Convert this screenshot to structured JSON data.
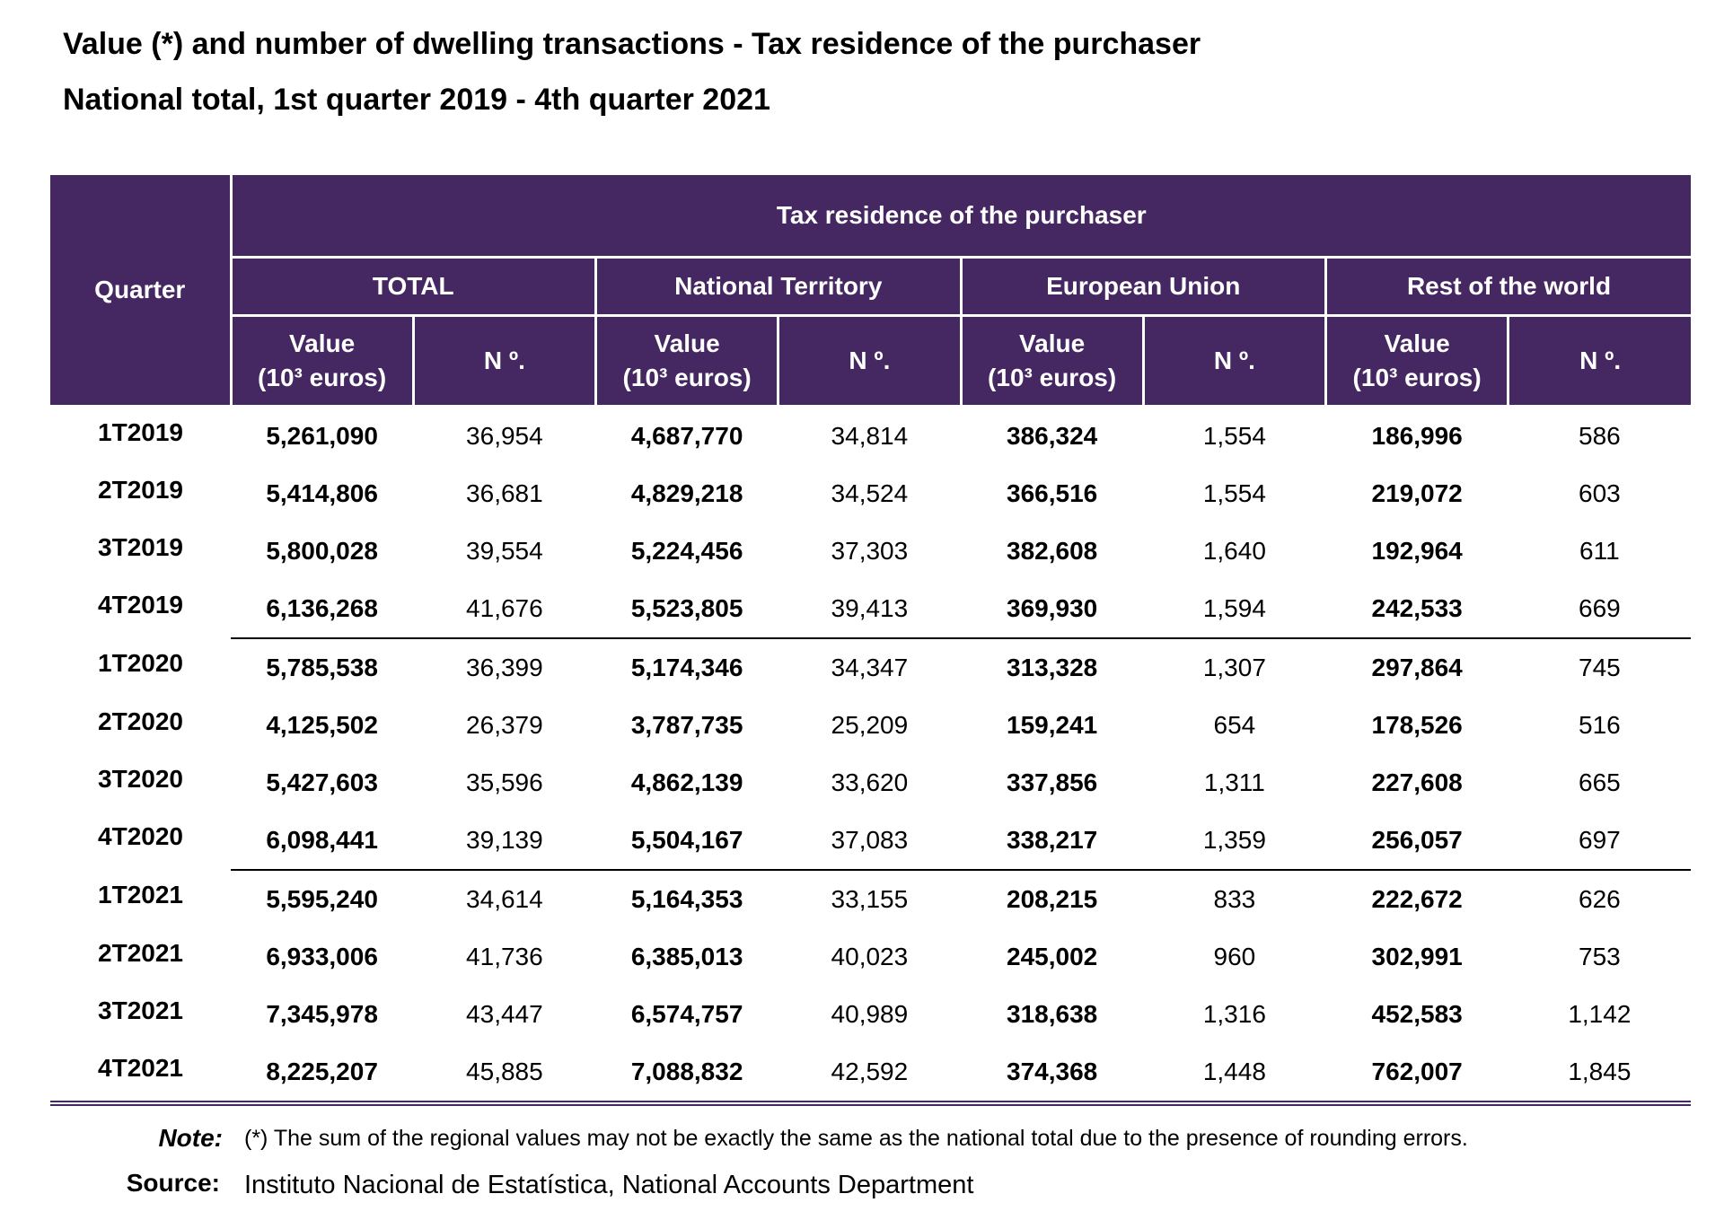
{
  "title": "Value (*) and number of dwelling transactions - Tax residence of the purchaser",
  "subtitle": "National total, 1st quarter 2019 - 4th quarter 2021",
  "table": {
    "quarter_header": "Quarter",
    "group_header": "Tax residence of the purchaser",
    "groups": [
      "TOTAL",
      "National Territory",
      "European Union",
      "Rest of the world"
    ],
    "value_header": "Value",
    "value_unit": "(10³ euros)",
    "count_header": "N º.",
    "rows": [
      [
        "1T2019",
        "5,261,090",
        "36,954",
        "4,687,770",
        "34,814",
        "386,324",
        "1,554",
        "186,996",
        "586"
      ],
      [
        "2T2019",
        "5,414,806",
        "36,681",
        "4,829,218",
        "34,524",
        "366,516",
        "1,554",
        "219,072",
        "603"
      ],
      [
        "3T2019",
        "5,800,028",
        "39,554",
        "5,224,456",
        "37,303",
        "382,608",
        "1,640",
        "192,964",
        "611"
      ],
      [
        "4T2019",
        "6,136,268",
        "41,676",
        "5,523,805",
        "39,413",
        "369,930",
        "1,594",
        "242,533",
        "669"
      ],
      [
        "1T2020",
        "5,785,538",
        "36,399",
        "5,174,346",
        "34,347",
        "313,328",
        "1,307",
        "297,864",
        "745"
      ],
      [
        "2T2020",
        "4,125,502",
        "26,379",
        "3,787,735",
        "25,209",
        "159,241",
        "654",
        "178,526",
        "516"
      ],
      [
        "3T2020",
        "5,427,603",
        "35,596",
        "4,862,139",
        "33,620",
        "337,856",
        "1,311",
        "227,608",
        "665"
      ],
      [
        "4T2020",
        "6,098,441",
        "39,139",
        "5,504,167",
        "37,083",
        "338,217",
        "1,359",
        "256,057",
        "697"
      ],
      [
        "1T2021",
        "5,595,240",
        "34,614",
        "5,164,353",
        "33,155",
        "208,215",
        "833",
        "222,672",
        "626"
      ],
      [
        "2T2021",
        "6,933,006",
        "41,736",
        "6,385,013",
        "40,023",
        "245,002",
        "960",
        "302,991",
        "753"
      ],
      [
        "3T2021",
        "7,345,978",
        "43,447",
        "6,574,757",
        "40,989",
        "318,638",
        "1,316",
        "452,583",
        "1,142"
      ],
      [
        "4T2021",
        "8,225,207",
        "45,885",
        "7,088,832",
        "42,592",
        "374,368",
        "1,448",
        "762,007",
        "1,845"
      ]
    ]
  },
  "note": {
    "label": "Note:",
    "text": "(*) The sum of the regional values may not be exactly the same as the national total due to the presence of rounding errors."
  },
  "source": {
    "label": "Source:",
    "text": "Instituto Nacional de Estatística, National Accounts Department"
  }
}
